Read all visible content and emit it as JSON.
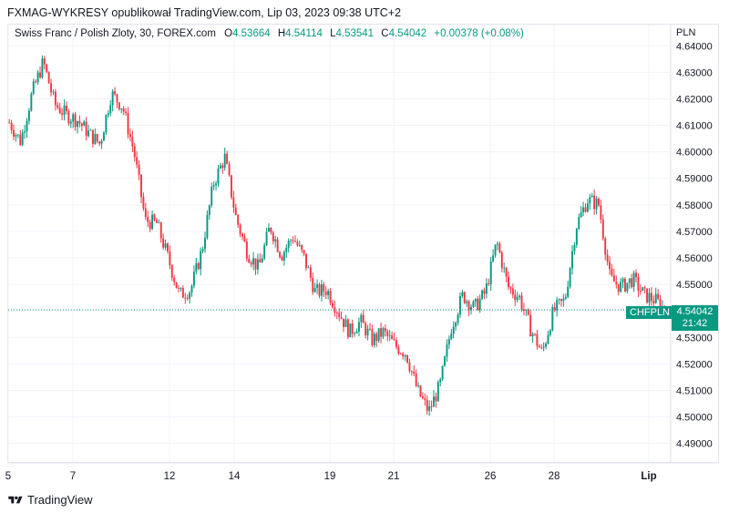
{
  "header": {
    "publisher": "FXMAG-WYKRESY opublikował TradingView.com, Lip 03, 2023 09:38 UTC+2"
  },
  "legend": {
    "symbol": "Swiss Franc / Polish Zloty, 30, FOREX.com",
    "o_label": "O",
    "o": "4.53664",
    "h_label": "H",
    "h": "4.54114",
    "l_label": "L",
    "l": "4.53541",
    "c_label": "C",
    "c": "4.54042",
    "change": "+0.00378 (+0.08%)"
  },
  "price_axis": {
    "unit": "PLN"
  },
  "last_price": {
    "symbol": "CHFPLN",
    "value": "4.54042",
    "countdown": "21:42"
  },
  "footer": {
    "brand": "TradingView"
  },
  "colors": {
    "up": "#089981",
    "down": "#f23645",
    "grid": "#f0f3fa",
    "last_line": "#089981"
  },
  "chart_data": {
    "type": "candlestick",
    "title": "Swiss Franc / Polish Zloty, 30, FOREX.com",
    "ylim": [
      4.483,
      4.648
    ],
    "y_ticks": [
      "4.49000",
      "4.50000",
      "4.51000",
      "4.52000",
      "4.53000",
      "4.54000",
      "4.55000",
      "4.56000",
      "4.57000",
      "4.58000",
      "4.59000",
      "4.60000",
      "4.61000",
      "4.62000",
      "4.63000",
      "4.64000"
    ],
    "x_ticks": [
      "5",
      "7",
      "12",
      "14",
      "19",
      "21",
      "26",
      "28",
      "Lip"
    ],
    "grid": true,
    "last_close": 4.54042,
    "series": [
      {
        "x": "5",
        "close": 4.611
      },
      {
        "x": "5.5",
        "close": 4.604
      },
      {
        "x": "6",
        "close": 4.622
      },
      {
        "x": "6.3",
        "close": 4.634
      },
      {
        "x": "6.6",
        "close": 4.618
      },
      {
        "x": "7",
        "close": 4.614
      },
      {
        "x": "7.5",
        "close": 4.612
      },
      {
        "x": "8",
        "close": 4.607
      },
      {
        "x": "8.6",
        "close": 4.603
      },
      {
        "x": "9",
        "close": 4.622
      },
      {
        "x": "9.5",
        "close": 4.617
      },
      {
        "x": "10",
        "close": 4.6
      },
      {
        "x": "10.5",
        "close": 4.574
      },
      {
        "x": "11",
        "close": 4.573
      },
      {
        "x": "11.5",
        "close": 4.56
      },
      {
        "x": "12",
        "close": 4.546
      },
      {
        "x": "12.5",
        "close": 4.548
      },
      {
        "x": "13",
        "close": 4.563
      },
      {
        "x": "13.4",
        "close": 4.588
      },
      {
        "x": "14",
        "close": 4.598
      },
      {
        "x": "14.5",
        "close": 4.575
      },
      {
        "x": "15",
        "close": 4.562
      },
      {
        "x": "15.5",
        "close": 4.556
      },
      {
        "x": "16",
        "close": 4.572
      },
      {
        "x": "16.5",
        "close": 4.561
      },
      {
        "x": "17",
        "close": 4.568
      },
      {
        "x": "17.5",
        "close": 4.56
      },
      {
        "x": "18",
        "close": 4.547
      },
      {
        "x": "18.6",
        "close": 4.548
      },
      {
        "x": "19",
        "close": 4.54
      },
      {
        "x": "19.5",
        "close": 4.532
      },
      {
        "x": "20",
        "close": 4.536
      },
      {
        "x": "20.5",
        "close": 4.529
      },
      {
        "x": "21",
        "close": 4.532
      },
      {
        "x": "21.5",
        "close": 4.527
      },
      {
        "x": "22",
        "close": 4.524
      },
      {
        "x": "22.4",
        "close": 4.51
      },
      {
        "x": "22.8",
        "close": 4.502
      },
      {
        "x": "23.3",
        "close": 4.512
      },
      {
        "x": "23.8",
        "close": 4.534
      },
      {
        "x": "24.3",
        "close": 4.546
      },
      {
        "x": "24.8",
        "close": 4.541
      },
      {
        "x": "25.2",
        "close": 4.547
      },
      {
        "x": "25.6",
        "close": 4.566
      },
      {
        "x": "26",
        "close": 4.549
      },
      {
        "x": "26.5",
        "close": 4.545
      },
      {
        "x": "27",
        "close": 4.533
      },
      {
        "x": "27.5",
        "close": 4.524
      },
      {
        "x": "28",
        "close": 4.54
      },
      {
        "x": "28.5",
        "close": 4.544
      },
      {
        "x": "28.9",
        "close": 4.572
      },
      {
        "x": "29.2",
        "close": 4.582
      },
      {
        "x": "29.6",
        "close": 4.58
      },
      {
        "x": "30",
        "close": 4.552
      },
      {
        "x": "30.4",
        "close": 4.549
      },
      {
        "x": "30.8",
        "close": 4.552
      },
      {
        "x": "31.2",
        "close": 4.546
      },
      {
        "x": "31.6",
        "close": 4.544
      },
      {
        "x": "Lip",
        "close": 4.54
      }
    ]
  }
}
